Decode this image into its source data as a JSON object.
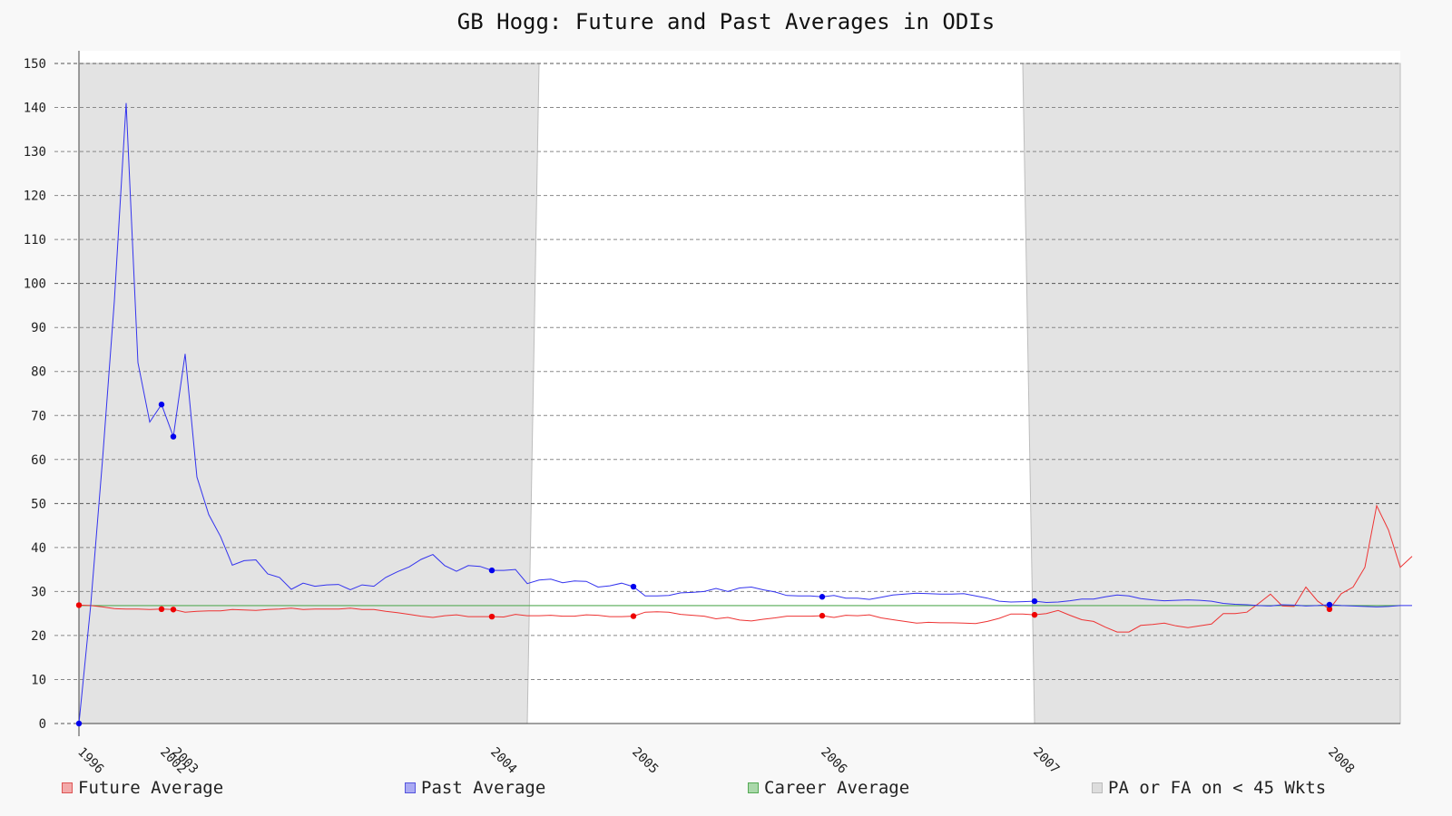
{
  "chart_data": {
    "type": "line",
    "title": "GB Hogg: Future and Past Averages in ODIs",
    "xlabel": "",
    "ylabel": "",
    "ylim": [
      0,
      150
    ],
    "y_ticks": [
      0,
      10,
      20,
      30,
      40,
      50,
      60,
      70,
      80,
      90,
      100,
      110,
      120,
      130,
      140,
      150
    ],
    "grid": true,
    "legend_position": "bottom",
    "x_index_range": [
      0,
      112
    ],
    "x_ticks": [
      {
        "label": "1996",
        "index": 0
      },
      {
        "label": "2002",
        "index": 7
      },
      {
        "label": "2003",
        "index": 8
      },
      {
        "label": "2004",
        "index": 35
      },
      {
        "label": "2005",
        "index": 47
      },
      {
        "label": "2006",
        "index": 63
      },
      {
        "label": "2007",
        "index": 81
      },
      {
        "label": "2008",
        "index": 106
      }
    ],
    "shaded_regions": [
      {
        "top_start": 0,
        "top_end": 39,
        "bottom_start": 0,
        "bottom_end": 38
      },
      {
        "top_start": 80,
        "top_end": 112,
        "bottom_start": 81,
        "bottom_end": 112
      }
    ],
    "series": [
      {
        "name": "Future Average",
        "color": "#ee3333",
        "marker_indices": [
          0,
          7,
          8,
          35,
          47,
          63,
          81,
          106
        ],
        "values": [
          26.9,
          26.8,
          26.5,
          26.1,
          26.0,
          26.0,
          25.9,
          26.0,
          25.9,
          25.3,
          25.5,
          25.6,
          25.6,
          25.9,
          25.8,
          25.7,
          25.9,
          26.0,
          26.2,
          25.9,
          26.0,
          26.0,
          26.0,
          26.2,
          25.9,
          25.9,
          25.5,
          25.2,
          24.8,
          24.4,
          24.1,
          24.5,
          24.7,
          24.3,
          24.3,
          24.3,
          24.2,
          24.8,
          24.5,
          24.5,
          24.6,
          24.4,
          24.4,
          24.7,
          24.6,
          24.3,
          24.3,
          24.4,
          25.3,
          25.4,
          25.3,
          24.8,
          24.6,
          24.4,
          23.8,
          24.1,
          23.5,
          23.3,
          23.7,
          24.0,
          24.4,
          24.4,
          24.4,
          24.5,
          24.1,
          24.6,
          24.5,
          24.7,
          24.0,
          23.6,
          23.2,
          22.8,
          23.0,
          22.9,
          22.9,
          22.8,
          22.7,
          23.2,
          23.9,
          24.9,
          24.9,
          24.7,
          25.0,
          25.7,
          24.6,
          23.6,
          23.2,
          21.9,
          20.8,
          20.8,
          22.3,
          22.5,
          22.8,
          22.2,
          21.8,
          22.2,
          22.6,
          25.0,
          25.0,
          25.3,
          27.3,
          29.4,
          26.7,
          26.6,
          31.0,
          27.8,
          26.0,
          29.5,
          31.0,
          35.5,
          49.5,
          44.0,
          35.5,
          38.0
        ]
      },
      {
        "name": "Past Average",
        "color": "#3333ee",
        "marker_indices": [
          0,
          7,
          8,
          35,
          47,
          63,
          81,
          106
        ],
        "values": [
          0,
          27.0,
          60.0,
          96.0,
          141.0,
          82.0,
          68.5,
          72.5,
          65.2,
          84.0,
          56.0,
          47.5,
          42.5,
          36.0,
          37.0,
          37.2,
          34.0,
          33.2,
          30.5,
          31.9,
          31.2,
          31.5,
          31.6,
          30.4,
          31.5,
          31.2,
          33.2,
          34.5,
          35.6,
          37.3,
          38.4,
          35.9,
          34.6,
          35.9,
          35.7,
          34.8,
          34.8,
          35.0,
          31.8,
          32.6,
          32.8,
          32.0,
          32.4,
          32.3,
          31.0,
          31.3,
          31.9,
          31.1,
          29.0,
          29.0,
          29.1,
          29.7,
          29.8,
          30.0,
          30.7,
          30.0,
          30.8,
          31.0,
          30.4,
          29.9,
          29.1,
          29.0,
          29.0,
          28.8,
          29.1,
          28.5,
          28.5,
          28.2,
          28.7,
          29.2,
          29.4,
          29.6,
          29.5,
          29.4,
          29.4,
          29.5,
          29.0,
          28.5,
          27.8,
          27.6,
          27.7,
          27.8,
          27.5,
          27.6,
          27.9,
          28.3,
          28.3,
          28.8,
          29.2,
          29.0,
          28.4,
          28.1,
          27.9,
          28.0,
          28.1,
          28.0,
          27.8,
          27.3,
          27.1,
          27.0,
          26.8,
          26.7,
          27.0,
          26.9,
          26.7,
          26.8,
          27.0,
          26.8,
          26.7,
          26.6,
          26.5,
          26.6,
          26.8,
          26.8
        ]
      },
      {
        "name": "Career Average",
        "color": "#55aa55",
        "constant_value": 26.8
      }
    ],
    "legend": [
      {
        "label": "Future Average",
        "fill": "#f3aaaa",
        "stroke": "#dd5555"
      },
      {
        "label": "Past Average",
        "fill": "#aaaaf3",
        "stroke": "#5555dd"
      },
      {
        "label": "Career Average",
        "fill": "#aad8aa",
        "stroke": "#55aa55"
      },
      {
        "label": "PA or FA on < 45 Wkts",
        "fill": "#dddddd",
        "stroke": "#bbbbbb"
      }
    ]
  }
}
